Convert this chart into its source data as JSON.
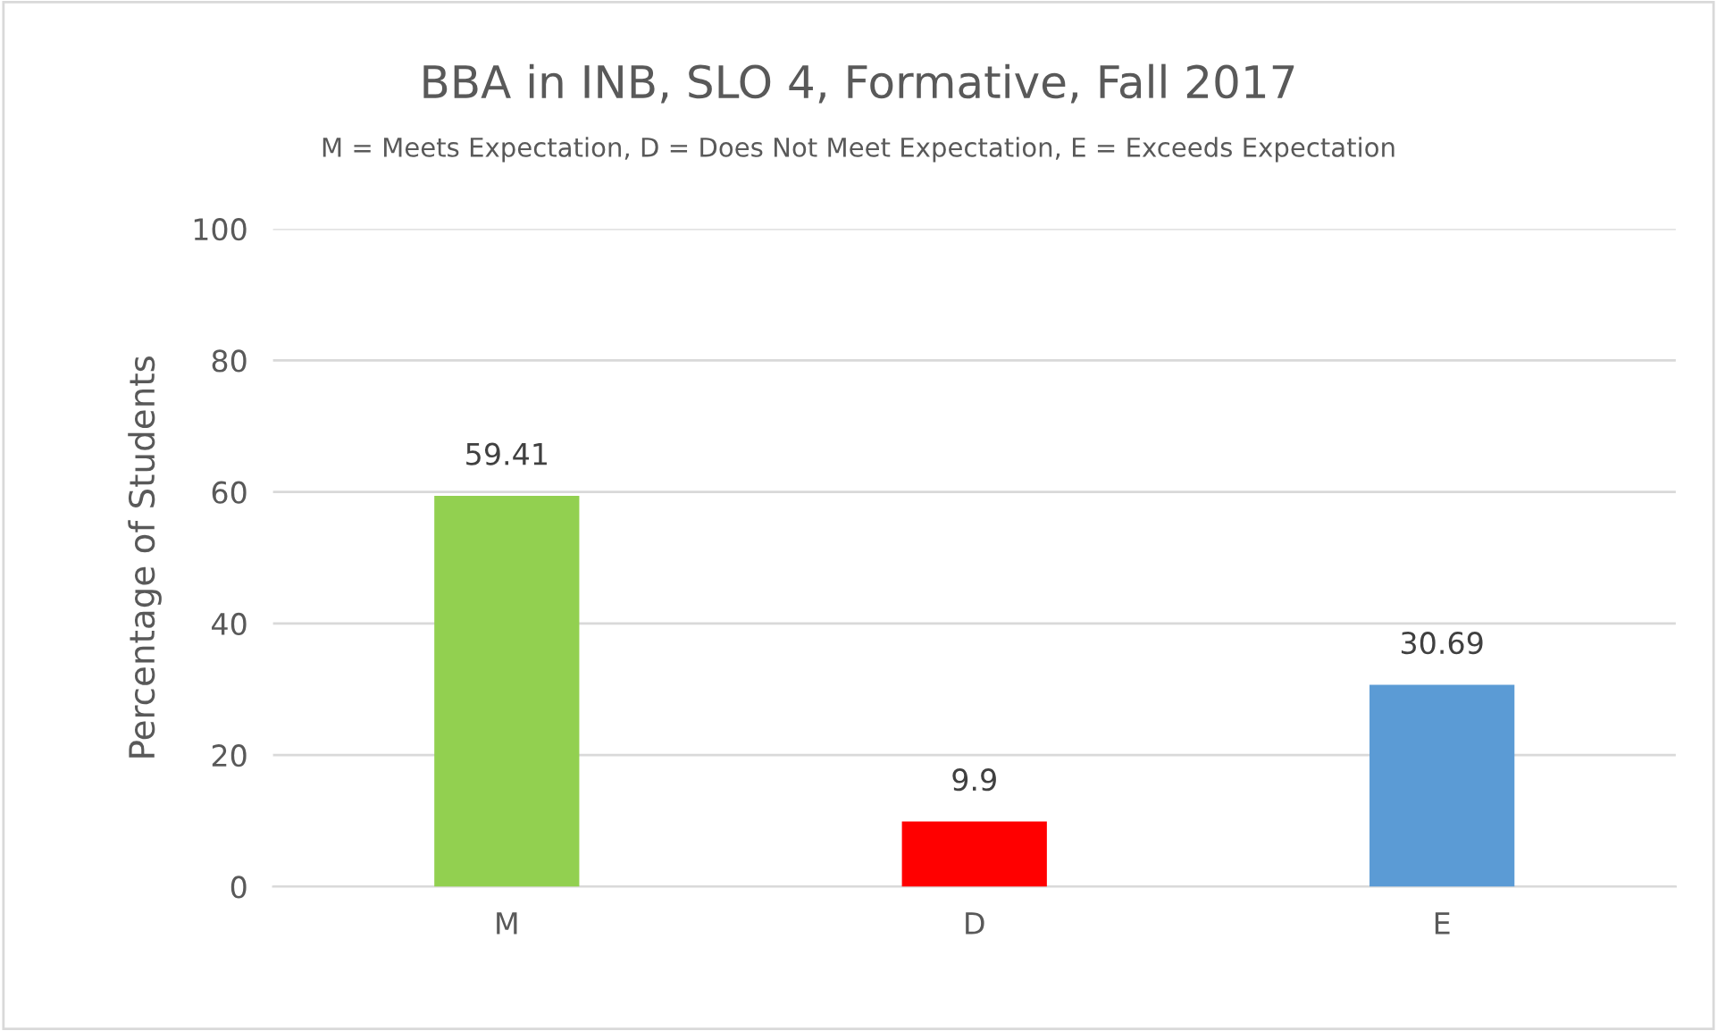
{
  "chart_data": {
    "type": "bar",
    "title": "BBA in INB, SLO 4, Formative, Fall 2017",
    "subtitle": "M = Meets Expectation, D = Does Not Meet Expectation, E = Exceeds Expectation",
    "ylabel": "Percentage of Students",
    "categories": [
      "M",
      "D",
      "E"
    ],
    "values": [
      59.41,
      9.9,
      30.69
    ],
    "colors": [
      "#92d050",
      "#ff0000",
      "#5b9bd5"
    ],
    "ylim": [
      0,
      100
    ],
    "yticks": [
      0,
      20,
      40,
      60,
      80,
      100
    ],
    "grid": "y",
    "data_labels": true
  }
}
